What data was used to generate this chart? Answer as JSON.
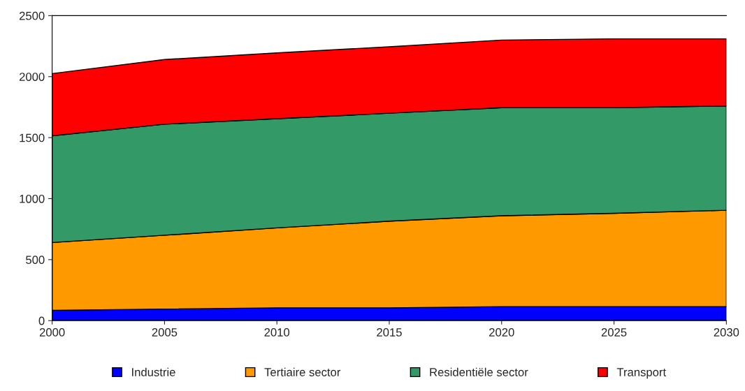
{
  "chart_data": {
    "type": "area",
    "stacked": true,
    "x": [
      2000,
      2005,
      2010,
      2015,
      2020,
      2025,
      2030
    ],
    "series": [
      {
        "name": "Industrie",
        "color": "#0000ff",
        "values": [
          85,
          95,
          105,
          105,
          115,
          115,
          115
        ]
      },
      {
        "name": "Tertiaire sector",
        "color": "#ff9900",
        "values": [
          555,
          605,
          655,
          710,
          745,
          765,
          790
        ]
      },
      {
        "name": "Residentiële sector",
        "color": "#339966",
        "values": [
          875,
          910,
          895,
          885,
          885,
          865,
          855
        ]
      },
      {
        "name": "Transport",
        "color": "#ff0000",
        "values": [
          510,
          530,
          540,
          545,
          555,
          565,
          550
        ]
      }
    ],
    "xlim": [
      2000,
      2030
    ],
    "xticks": [
      2000,
      2005,
      2010,
      2015,
      2020,
      2025,
      2030
    ],
    "ylim": [
      0,
      2500
    ],
    "yticks": [
      0,
      500,
      1000,
      1500,
      2000,
      2500
    ],
    "grid": false,
    "legend": "bottom"
  }
}
